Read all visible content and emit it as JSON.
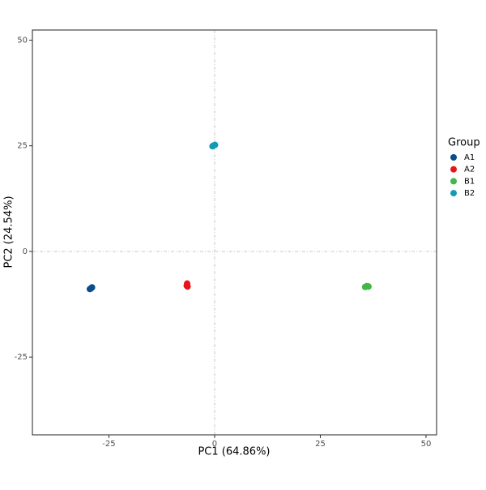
{
  "chart_data": {
    "type": "scatter",
    "x_label": "PC1 (64.86%)",
    "y_label": "PC2 (24.54%)",
    "legend_title": "Group",
    "legend_position": "right",
    "xlim": [
      -43.1,
      52.5
    ],
    "ylim": [
      -43.4,
      52.4
    ],
    "xticks": [
      -25,
      0,
      25,
      50
    ],
    "yticks": [
      -25,
      0,
      25,
      50
    ],
    "hline": 0,
    "vline": 0,
    "grid": false,
    "series": [
      {
        "name": "A1",
        "color": "#0b4c8c",
        "x": [
          -29.5,
          -29.2,
          -29.0
        ],
        "values": [
          -8.9,
          -8.7,
          -8.5
        ]
      },
      {
        "name": "A2",
        "color": "#e8141b",
        "x": [
          -6.5,
          -6.6,
          -6.4
        ],
        "values": [
          -7.6,
          -8.1,
          -8.3
        ]
      },
      {
        "name": "B1",
        "color": "#43b649",
        "x": [
          35.6,
          36.0,
          36.4
        ],
        "values": [
          -8.4,
          -8.2,
          -8.3
        ]
      },
      {
        "name": "B2",
        "color": "#129bb5",
        "x": [
          -0.5,
          -0.2,
          0.1
        ],
        "values": [
          24.9,
          25.1,
          25.2
        ]
      }
    ]
  }
}
